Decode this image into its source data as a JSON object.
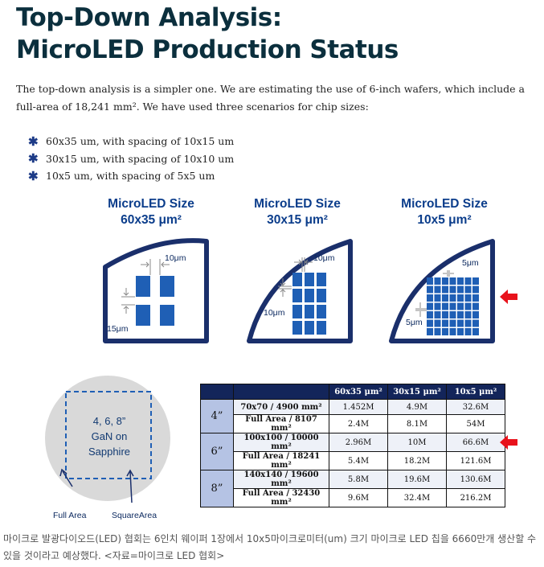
{
  "title_line1": "Top-Down Analysis:",
  "title_line2": "MicroLED Production Status",
  "intro": "The top-down analysis is a simpler one. We are estimating the use of 6-inch wafers, which include a full-area of 18,241 mm². We have used three scenarios for chip sizes:",
  "bullets": [
    "60x35 um, with spacing of 10x15 um",
    "30x15 um, with spacing of 10x10 um",
    "10x5 um, with spacing of 5x5 um"
  ],
  "diagrams": [
    {
      "title_l1": "MicroLED Size",
      "title_l2": "60x35 μm²",
      "label_top": "10μm",
      "label_side": "15μm"
    },
    {
      "title_l1": "MicroLED Size",
      "title_l2": "30x15 μm²",
      "label_top": "10μm",
      "label_side": "10μm"
    },
    {
      "title_l1": "MicroLED Size",
      "title_l2": "10x5 μm²",
      "label_top": "5μm",
      "label_side": "5μm"
    }
  ],
  "wafer": {
    "line1": "4, 6, 8”",
    "line2": "GaN on",
    "line3": "Sapphire",
    "full_area_label": "Full Area",
    "square_area_label": "SquareArea"
  },
  "table": {
    "headers": [
      "60x35 μm²",
      "30x15 μm²",
      "10x5 μm²"
    ],
    "groups": [
      {
        "size": "4”",
        "rows": [
          {
            "label": "70x70 / 4900 mm²",
            "values": [
              "1.452M",
              "4.9M",
              "32.6M"
            ]
          },
          {
            "label": "Full Area / 8107 mm²",
            "values": [
              "2.4M",
              "8.1M",
              "54M"
            ]
          }
        ]
      },
      {
        "size": "6”",
        "rows": [
          {
            "label": "100x100 / 10000 mm²",
            "values": [
              "2.96M",
              "10M",
              "66.6M"
            ]
          },
          {
            "label": "Full Area / 18241 mm²",
            "values": [
              "5.4M",
              "18.2M",
              "121.6M"
            ]
          }
        ]
      },
      {
        "size": "8”",
        "rows": [
          {
            "label": "140x140 / 19600 mm²",
            "values": [
              "5.8M",
              "19.6M",
              "130.6M"
            ]
          },
          {
            "label": "Full Area / 32430 mm²",
            "values": [
              "9.6M",
              "32.4M",
              "216.2M"
            ]
          }
        ]
      }
    ]
  },
  "caption": "마이크로 발광다이오드(LED) 협회는 6인치 웨이퍼 1장에서 10x5마이크로미터(um) 크기 마이크로 LED 칩을 6660만개 생산할 수 있을 것이라고 예상했다. <자료=마이크로 LED 협회>",
  "colors": {
    "navy": "#1a2f6b",
    "chip": "#1f5fb5",
    "accent_red": "#e8121b",
    "header": "#13255a",
    "size_cell": "#b5c3e4"
  }
}
